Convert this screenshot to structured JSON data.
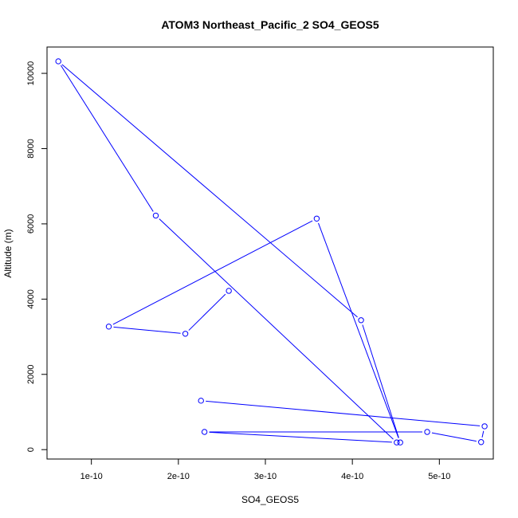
{
  "chart_data": {
    "type": "line",
    "title": "ATOM3 Northeast_Pacific_2 SO4_GEOS5",
    "xlabel": "SO4_GEOS5",
    "ylabel": "Altitude (m)",
    "xlim": [
      4.9e-11,
      5.62e-10
    ],
    "ylim": [
      -250,
      10700
    ],
    "x_ticks": [
      1e-10,
      2e-10,
      3e-10,
      4e-10,
      5e-10
    ],
    "x_tick_labels": [
      "1e-10",
      "2e-10",
      "3e-10",
      "4e-10",
      "5e-10"
    ],
    "y_ticks": [
      0,
      2000,
      4000,
      6000,
      8000,
      10000
    ],
    "y_tick_labels": [
      "0",
      "2000",
      "4000",
      "6000",
      "8000",
      "10000"
    ],
    "grid": false,
    "series": [
      {
        "color": "#0000ff",
        "marker": "open-circle",
        "points": [
          {
            "x": 2.58e-10,
            "y": 4220
          },
          {
            "x": 2.08e-10,
            "y": 3080
          },
          {
            "x": 1.2e-10,
            "y": 3270
          },
          {
            "x": 3.59e-10,
            "y": 6140
          },
          {
            "x": 4.55e-10,
            "y": 190
          },
          {
            "x": 4.1e-10,
            "y": 3440
          },
          {
            "x": 6.2e-11,
            "y": 10320
          },
          {
            "x": 1.74e-10,
            "y": 6220
          },
          {
            "x": 4.51e-10,
            "y": 190
          },
          {
            "x": 2.3e-10,
            "y": 470
          },
          {
            "x": 4.86e-10,
            "y": 470
          },
          {
            "x": 5.48e-10,
            "y": 200
          },
          {
            "x": 5.52e-10,
            "y": 620
          },
          {
            "x": 2.26e-10,
            "y": 1300
          }
        ]
      }
    ]
  }
}
